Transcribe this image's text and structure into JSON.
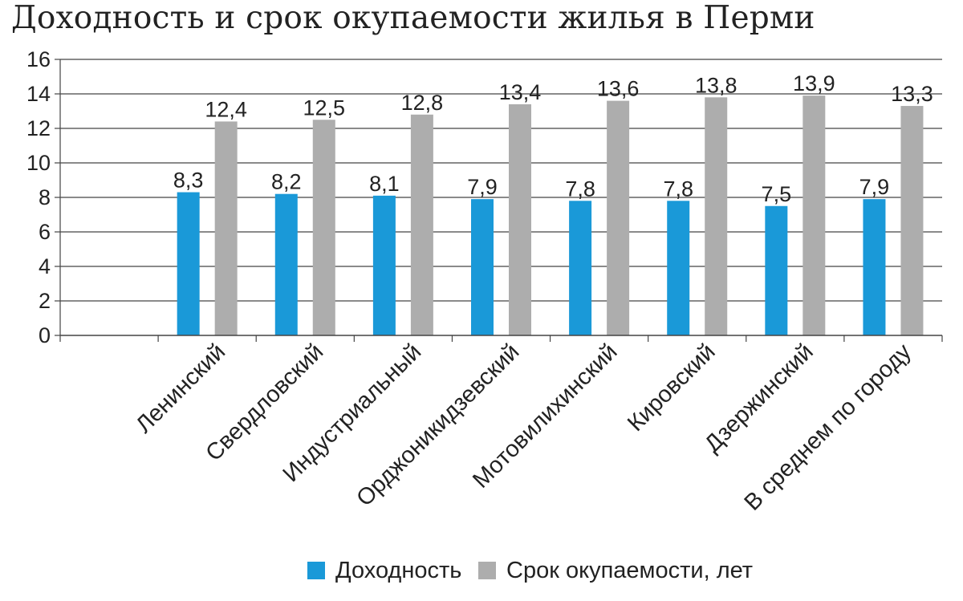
{
  "chart_data": {
    "type": "bar",
    "title": "Доходность и срок окупаемости жилья в Перми",
    "categories": [
      "Ленинский",
      "Свердловский",
      "Индустриальный",
      "Орджоникидзевский",
      "Мотовилихинский",
      "Кировский",
      "Дзержинский",
      "В среднем по городу"
    ],
    "series": [
      {
        "name": "Доходность",
        "color": "#1a99d8",
        "values": [
          8.3,
          8.2,
          8.1,
          7.9,
          7.8,
          7.8,
          7.5,
          7.9
        ],
        "labels": [
          "8,3",
          "8,2",
          "8,1",
          "7,9",
          "7,8",
          "7,8",
          "7,5",
          "7,9"
        ]
      },
      {
        "name": "Срок окупаемости, лет",
        "color": "#adadad",
        "values": [
          12.4,
          12.5,
          12.8,
          13.4,
          13.6,
          13.8,
          13.9,
          13.3
        ],
        "labels": [
          "12,4",
          "12,5",
          "12,8",
          "13,4",
          "13,6",
          "13,8",
          "13,9",
          "13,3"
        ]
      }
    ],
    "ylim": [
      0,
      16
    ],
    "yticks": [
      "0",
      "2",
      "4",
      "6",
      "8",
      "10",
      "12",
      "14",
      "16"
    ],
    "grid": true,
    "legend": "bottom"
  }
}
